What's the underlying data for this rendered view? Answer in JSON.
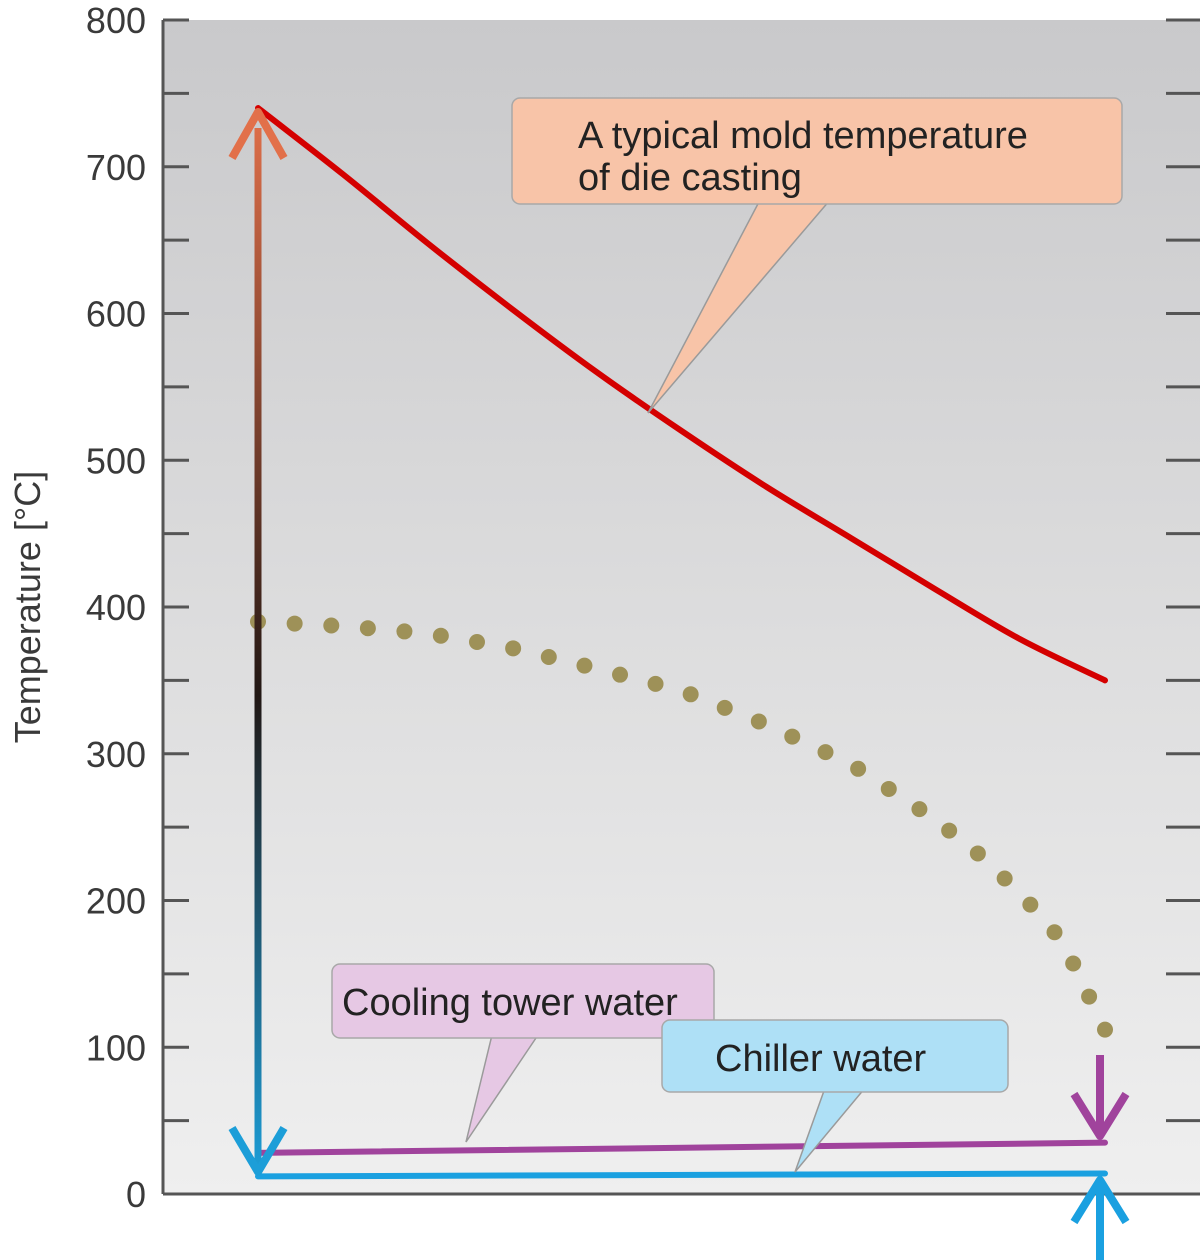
{
  "chart_data": {
    "type": "line",
    "title": "",
    "xlabel": "",
    "ylabel": "Temperature [°C]",
    "ylim": [
      0,
      800
    ],
    "xlim": [
      0,
      1
    ],
    "y_ticks": [
      "0",
      "100",
      "200",
      "300",
      "400",
      "500",
      "600",
      "700",
      "800"
    ],
    "grid": false,
    "series": [
      {
        "name": "A typical mold temperature of die casting",
        "style": "solid",
        "color": "#d40000",
        "x": [
          0.0,
          0.1,
          0.2,
          0.3,
          0.4,
          0.5,
          0.6,
          0.7,
          0.8,
          0.9,
          1.0
        ],
        "y": [
          740,
          695,
          648,
          603,
          560,
          520,
          482,
          447,
          412,
          378,
          350
        ]
      },
      {
        "name": "",
        "style": "dotted",
        "color": "#9e9158",
        "x": [
          0.0,
          0.1,
          0.2,
          0.3,
          0.4,
          0.5,
          0.6,
          0.7,
          0.8,
          0.85,
          0.9,
          0.95,
          1.0
        ],
        "y": [
          390,
          387,
          382,
          372,
          358,
          343,
          320,
          293,
          255,
          232,
          205,
          172,
          112
        ]
      },
      {
        "name": "Cooling tower water",
        "style": "solid",
        "color": "#a0439c",
        "x": [
          0.0,
          1.0
        ],
        "y": [
          28,
          35
        ]
      },
      {
        "name": "Chiller water",
        "style": "solid",
        "color": "#1aa0e0",
        "x": [
          0.0,
          1.0
        ],
        "y": [
          12,
          14
        ]
      }
    ],
    "annotations": [
      {
        "text": "A typical mold temperature of die casting",
        "lines": [
          "A typical mold temperature",
          "of die casting"
        ],
        "color": "#f8c4a8",
        "target_series": 0
      },
      {
        "text": "Cooling tower water",
        "lines": [
          "Cooling tower water"
        ],
        "color": "#e6c8e4",
        "target_series": 2
      },
      {
        "text": "Chiller water",
        "lines": [
          "Chiller water"
        ],
        "color": "#aee0f6",
        "target_series": 3
      }
    ],
    "colors": {
      "plot_bg_top": "#c9c9cb",
      "plot_bg_bottom": "#efefef",
      "axis": "#555555",
      "arrow_top": "#e2704a",
      "arrow_mid": "#211714",
      "arrow_bottom": "#1c9ed8"
    }
  }
}
